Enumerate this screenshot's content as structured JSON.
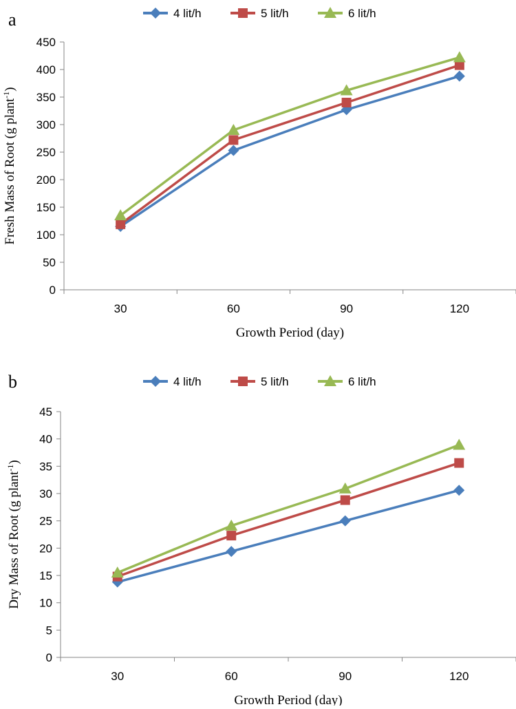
{
  "colors": {
    "series_4": "#4a7ebb",
    "series_5": "#be4b48",
    "series_6": "#98b954",
    "axis": "#868686"
  },
  "chart_data": [
    {
      "type": "line",
      "panel_label": "a",
      "categories": [
        "30",
        "60",
        "90",
        "120"
      ],
      "series": [
        {
          "name": "4 lit/h",
          "marker": "diamond",
          "values": [
            115,
            253,
            327,
            388
          ]
        },
        {
          "name": "5 lit/h",
          "marker": "square",
          "values": [
            119,
            272,
            340,
            408
          ]
        },
        {
          "name": "6 lit/h",
          "marker": "triangle",
          "values": [
            135,
            290,
            362,
            422
          ]
        }
      ],
      "xlabel": "Growth Period (day)",
      "ylabel": "Fresh Mass of Root (g plant",
      "ylabel_sup": "-1",
      "ylabel_end": ")",
      "ylim": [
        0,
        450
      ],
      "yticks": [
        0,
        50,
        100,
        150,
        200,
        250,
        300,
        350,
        400,
        450
      ],
      "legend": "top",
      "grid": false
    },
    {
      "type": "line",
      "panel_label": "b",
      "categories": [
        "30",
        "60",
        "90",
        "120"
      ],
      "series": [
        {
          "name": "4 lit/h",
          "marker": "diamond",
          "values": [
            13.8,
            19.4,
            25.0,
            30.6
          ]
        },
        {
          "name": "5 lit/h",
          "marker": "square",
          "values": [
            14.8,
            22.3,
            28.8,
            35.6
          ]
        },
        {
          "name": "6 lit/h",
          "marker": "triangle",
          "values": [
            15.5,
            24.1,
            30.9,
            38.9
          ]
        }
      ],
      "xlabel": "Growth Period (day)",
      "ylabel": "Dry Mass of Root (g plant",
      "ylabel_sup": "-1",
      "ylabel_end": ")",
      "ylim": [
        0,
        45
      ],
      "yticks": [
        0,
        5,
        10,
        15,
        20,
        25,
        30,
        35,
        40,
        45
      ],
      "legend": "top",
      "grid": false
    }
  ]
}
